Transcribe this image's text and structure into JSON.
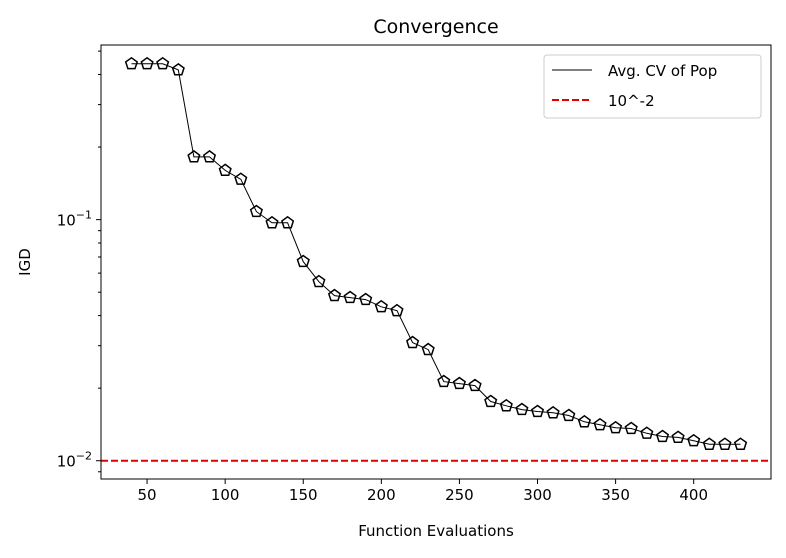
{
  "chart_data": {
    "type": "line",
    "title": "Convergence",
    "xlabel": "Function Evaluations",
    "ylabel": "IGD",
    "xlim": [
      20.5,
      449.5
    ],
    "ylim": [
      0.0084,
      0.53
    ],
    "yscale": "log",
    "grid": false,
    "legend_placement": "top-right",
    "x_ticks": [
      50,
      100,
      150,
      200,
      250,
      300,
      350,
      400
    ],
    "x_tick_labels": [
      "50",
      "100",
      "150",
      "200",
      "250",
      "300",
      "350",
      "400"
    ],
    "y_ticks": [
      {
        "value": 0.1,
        "base": "10",
        "exp": "−1"
      },
      {
        "value": 0.01,
        "base": "10",
        "exp": "−2"
      }
    ],
    "series": [
      {
        "name": "Avg. CV of Pop",
        "color": "#000000",
        "marker": "pentagon",
        "x": [
          40,
          50,
          60,
          70,
          80,
          90,
          100,
          110,
          120,
          130,
          140,
          150,
          160,
          170,
          180,
          190,
          200,
          210,
          220,
          230,
          240,
          250,
          260,
          270,
          280,
          290,
          300,
          310,
          320,
          330,
          340,
          350,
          360,
          370,
          380,
          390,
          400,
          410,
          420,
          430
        ],
        "y": [
          0.443,
          0.443,
          0.443,
          0.418,
          0.182,
          0.182,
          0.16,
          0.147,
          0.108,
          0.097,
          0.097,
          0.067,
          0.0553,
          0.0484,
          0.0475,
          0.0466,
          0.0435,
          0.0419,
          0.0309,
          0.0289,
          0.0213,
          0.0209,
          0.0205,
          0.0176,
          0.0169,
          0.0163,
          0.016,
          0.0158,
          0.0154,
          0.0145,
          0.0141,
          0.0137,
          0.0136,
          0.013,
          0.0126,
          0.0125,
          0.0121,
          0.0117,
          0.0117,
          0.0117
        ]
      }
    ],
    "reference_line": {
      "name": "10^-2",
      "y": 0.01,
      "color": "#e00000",
      "style": "dashed"
    }
  }
}
